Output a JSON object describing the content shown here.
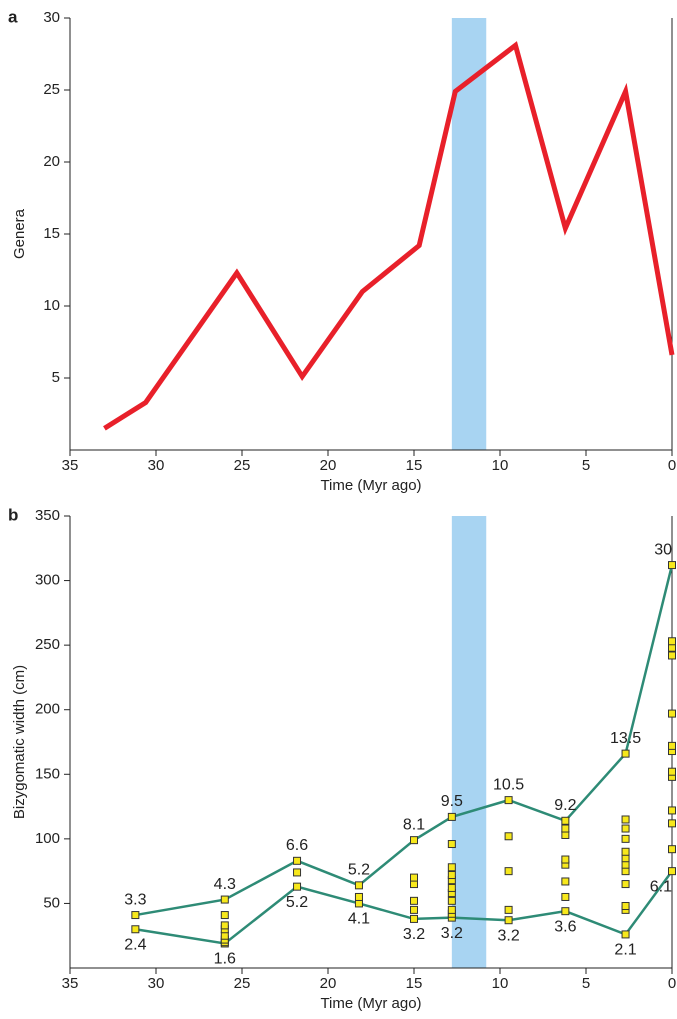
{
  "chart_data": [
    {
      "type": "line",
      "label": "a",
      "xlabel": "Time (Myr ago)",
      "ylabel": "Genera",
      "xlim": [
        35,
        0
      ],
      "xticks": [
        35,
        30,
        25,
        20,
        15,
        10,
        5,
        0
      ],
      "ylim": [
        0,
        30
      ],
      "yticks": [
        5,
        10,
        15,
        20,
        25,
        30
      ],
      "highlight": {
        "from": 12.8,
        "to": 10.8,
        "color": "#a8d4f2"
      },
      "series": [
        {
          "color": "#e8202a",
          "x": [
            33.0,
            30.6,
            25.3,
            21.5,
            18.0,
            14.7,
            12.6,
            9.1,
            6.2,
            2.7,
            0
          ],
          "values": [
            1.5,
            3.3,
            12.3,
            5.1,
            11.0,
            14.2,
            24.9,
            28.1,
            15.4,
            24.9,
            6.6
          ]
        }
      ]
    },
    {
      "type": "line",
      "label": "b",
      "xlabel": "Time (Myr ago)",
      "ylabel": "Bizygomatic width (cm)",
      "xlim": [
        35,
        0
      ],
      "xticks": [
        35,
        30,
        25,
        20,
        15,
        10,
        5,
        0
      ],
      "ylim": [
        0,
        350
      ],
      "yticks": [
        50,
        100,
        150,
        200,
        250,
        300,
        350
      ],
      "highlight": {
        "from": 12.8,
        "to": 10.8,
        "color": "#a8d4f2"
      },
      "series": [
        {
          "color": "#2e8b76",
          "marker": "#f7e81c",
          "label_position": "above",
          "x": [
            31.2,
            26,
            21.8,
            18.2,
            15,
            12.8,
            9.5,
            6.2,
            2.7,
            0
          ],
          "values": [
            41,
            53,
            83,
            64,
            99,
            117,
            130,
            114,
            166,
            312
          ],
          "labels": [
            "3.3",
            "4.3",
            "6.6",
            "5.2",
            "8.1",
            "9.5",
            "10.5",
            "9.2",
            "13.5",
            "30"
          ]
        },
        {
          "color": "#2e8b76",
          "marker": "#f7e81c",
          "label_position": "below",
          "x": [
            31.2,
            26,
            21.8,
            18.2,
            15,
            12.8,
            9.5,
            6.2,
            2.7,
            0
          ],
          "values": [
            30,
            19,
            63,
            50,
            38,
            39,
            37,
            44,
            26,
            75
          ],
          "labels": [
            "2.4",
            "1.6",
            "5.2",
            "4.1",
            "3.2",
            "3.2",
            "3.2",
            "3.6",
            "2.1",
            "6.1"
          ]
        },
        {
          "marker": "#f7e81c",
          "x": [
            26,
            26,
            26,
            26,
            26,
            26,
            21.8,
            18.2,
            15,
            15,
            15,
            15,
            12.8,
            12.8,
            12.8,
            12.8,
            12.8,
            12.8,
            12.8,
            12.8,
            12.8,
            9.5,
            9.5,
            9.5,
            6.2,
            6.2,
            6.2,
            6.2,
            6.2,
            6.2,
            2.7,
            2.7,
            2.7,
            2.7,
            2.7,
            2.7,
            2.7,
            2.7,
            2.7,
            2.7,
            0,
            0,
            0,
            0,
            0,
            0,
            0,
            0,
            0,
            0,
            0
          ],
          "values": [
            20,
            22,
            25,
            30,
            33,
            41,
            74,
            55,
            45,
            52,
            65,
            70,
            42,
            45,
            52,
            58,
            62,
            68,
            72,
            78,
            96,
            45,
            75,
            102,
            55,
            67,
            80,
            84,
            103,
            108,
            45,
            48,
            65,
            75,
            80,
            85,
            90,
            100,
            108,
            115,
            92,
            112,
            122,
            148,
            152,
            168,
            172,
            197,
            242,
            248,
            253
          ]
        }
      ]
    }
  ]
}
